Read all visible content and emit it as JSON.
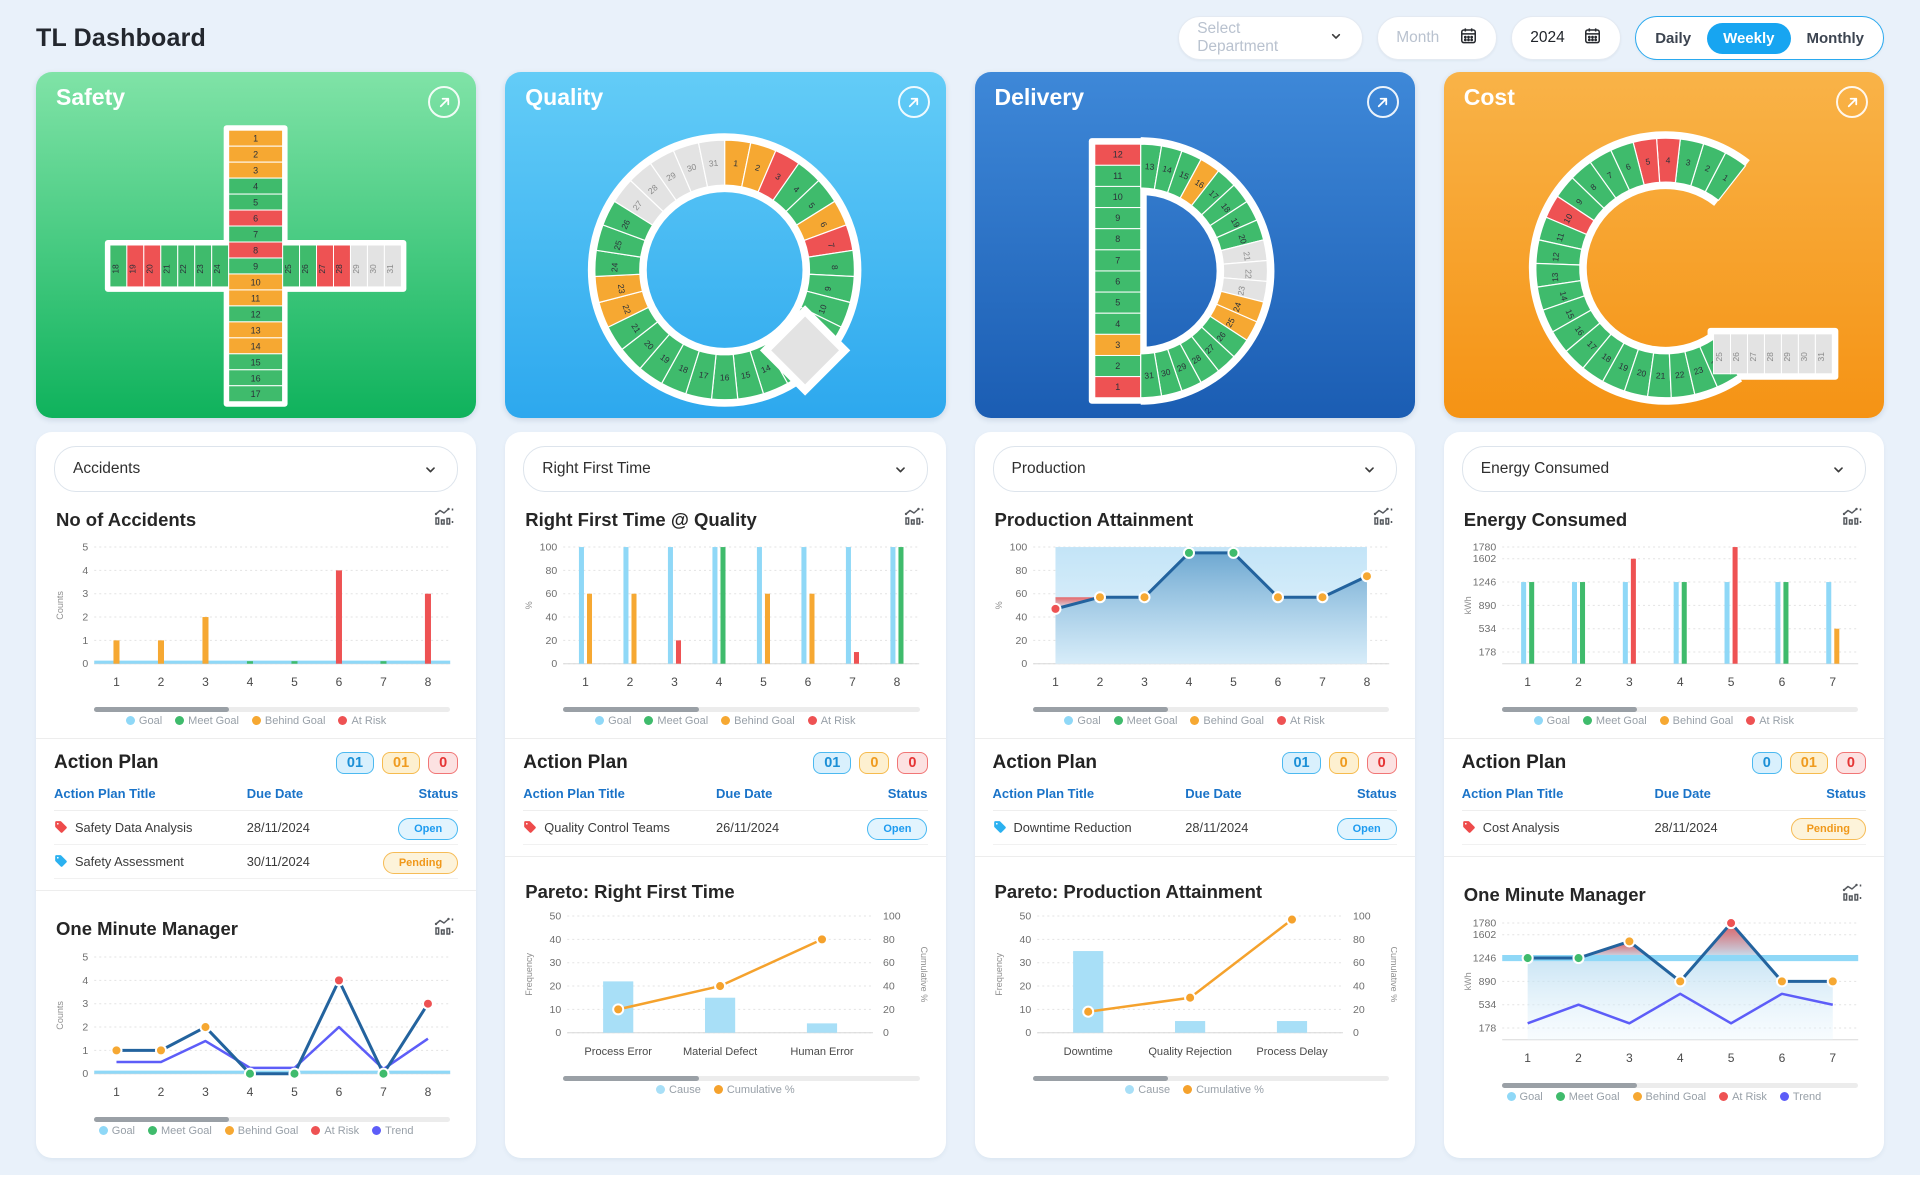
{
  "colors": {
    "goal": "#8fd8f7",
    "meet": "#3fbb6c",
    "behind": "#f6a832",
    "risk": "#ee5253",
    "none": "#e3e3e3",
    "trend": "#5d5df8",
    "line": "#23639e",
    "pareto_bar": "#a8dff7",
    "cumulative": "#f5a22d",
    "accent": "#18a7f1"
  },
  "header": {
    "title": "TL Dashboard",
    "department_placeholder": "Select Department",
    "month_placeholder": "Month",
    "year": "2024",
    "ranges": [
      "Daily",
      "Weekly",
      "Monthly"
    ],
    "active_range": "Weekly"
  },
  "columns": [
    {
      "key": "safety",
      "title": "Safety",
      "letter": "plus",
      "gradient": [
        "#80e3a7",
        "#0fb25c"
      ],
      "days": [
        "behind",
        "behind",
        "behind",
        "meet",
        "meet",
        "risk",
        "meet",
        "risk",
        "meet",
        "behind",
        "behind",
        "meet",
        "behind",
        "behind",
        "meet",
        "meet",
        "meet",
        "meet",
        "risk",
        "risk",
        "meet",
        "meet",
        "meet",
        "meet",
        "meet",
        "meet",
        "risk",
        "risk",
        "none",
        "none",
        "none"
      ],
      "metric": "Accidents",
      "main_chart": {
        "kind": "bars",
        "title": "No of Accidents",
        "ylabel": "Counts",
        "yticks": [
          0,
          1,
          2,
          3,
          4,
          5
        ],
        "x": [
          "1",
          "2",
          "3",
          "4",
          "5",
          "6",
          "7",
          "8"
        ],
        "values": [
          1,
          1,
          2,
          0,
          0,
          4,
          0,
          3
        ],
        "statuses": [
          "behind",
          "behind",
          "behind",
          "meet",
          "meet",
          "risk",
          "meet",
          "risk"
        ],
        "goal": 0,
        "legend": [
          {
            "label": "Goal",
            "key": "goal"
          },
          {
            "label": "Meet Goal",
            "key": "meet"
          },
          {
            "label": "Behind Goal",
            "key": "behind"
          },
          {
            "label": "At Risk",
            "key": "risk"
          }
        ]
      },
      "action_plan": {
        "title": "Action Plan",
        "counts": [
          {
            "value": "01",
            "type": "open"
          },
          {
            "value": "01",
            "type": "pending"
          },
          {
            "value": "0",
            "type": "risk"
          }
        ],
        "columns": [
          "Action Plan Title",
          "Due Date",
          "Status"
        ],
        "rows": [
          {
            "tag": "risk",
            "title": "Safety Data Analysis",
            "due": "28/11/2024",
            "status": "Open",
            "status_type": "open"
          },
          {
            "tag": "open",
            "title": "Safety Assessment",
            "due": "30/11/2024",
            "status": "Pending",
            "status_type": "pending"
          }
        ]
      },
      "bottom_chart": {
        "kind": "omm",
        "title": "One Minute Manager",
        "ylabel": "Counts",
        "yticks": [
          0,
          1,
          2,
          3,
          4,
          5
        ],
        "x": [
          "1",
          "2",
          "3",
          "4",
          "5",
          "6",
          "7",
          "8"
        ],
        "values": [
          1,
          1,
          2,
          0,
          0,
          4,
          0,
          3
        ],
        "statuses": [
          "behind",
          "behind",
          "behind",
          "meet",
          "meet",
          "risk",
          "meet",
          "risk"
        ],
        "trend": [
          0.5,
          0.5,
          1.4,
          0.25,
          0.25,
          2,
          0.2,
          1.5
        ],
        "goal": 0,
        "fill": false,
        "legend": [
          {
            "label": "Goal",
            "key": "goal"
          },
          {
            "label": "Meet Goal",
            "key": "meet"
          },
          {
            "label": "Behind Goal",
            "key": "behind"
          },
          {
            "label": "At Risk",
            "key": "risk"
          },
          {
            "label": "Trend",
            "key": "trend"
          }
        ]
      }
    },
    {
      "key": "quality",
      "title": "Quality",
      "letter": "q",
      "gradient": [
        "#63ccf7",
        "#2da8ee"
      ],
      "days": [
        "behind",
        "behind",
        "risk",
        "meet",
        "meet",
        "behind",
        "risk",
        "meet",
        "meet",
        "meet",
        "meet",
        "meet",
        "meet",
        "meet",
        "meet",
        "meet",
        "meet",
        "meet",
        "meet",
        "meet",
        "meet",
        "behind",
        "behind",
        "meet",
        "meet",
        "meet",
        "none",
        "none",
        "none",
        "none",
        "none"
      ],
      "metric": "Right First Time",
      "main_chart": {
        "kind": "paired",
        "title": "Right First Time @ Quality",
        "ylabel": "%",
        "yticks": [
          0,
          20,
          40,
          60,
          80,
          100
        ],
        "x": [
          "1",
          "2",
          "3",
          "4",
          "5",
          "6",
          "7",
          "8"
        ],
        "goal_value": 100,
        "values": [
          60,
          60,
          20,
          100,
          60,
          60,
          10,
          100
        ],
        "statuses": [
          "behind",
          "behind",
          "risk",
          "meet",
          "behind",
          "behind",
          "risk",
          "meet"
        ],
        "legend": [
          {
            "label": "Goal",
            "key": "goal"
          },
          {
            "label": "Meet Goal",
            "key": "meet"
          },
          {
            "label": "Behind Goal",
            "key": "behind"
          },
          {
            "label": "At Risk",
            "key": "risk"
          }
        ]
      },
      "action_plan": {
        "title": "Action Plan",
        "counts": [
          {
            "value": "01",
            "type": "open"
          },
          {
            "value": "0",
            "type": "pending"
          },
          {
            "value": "0",
            "type": "risk"
          }
        ],
        "columns": [
          "Action Plan Title",
          "Due Date",
          "Status"
        ],
        "rows": [
          {
            "tag": "risk",
            "title": "Quality Control Teams",
            "due": "26/11/2024",
            "status": "Open",
            "status_type": "open"
          }
        ]
      },
      "bottom_chart": {
        "kind": "pareto",
        "title": "Pareto: Right First Time",
        "left_label": "Frequency",
        "right_label": "Cumulative %",
        "left_ticks": [
          0,
          10,
          20,
          30,
          40,
          50
        ],
        "right_ticks": [
          0,
          20,
          40,
          60,
          80,
          100
        ],
        "categories": [
          "Process Error",
          "Material Defect",
          "Human Error"
        ],
        "bars": [
          22,
          15,
          4
        ],
        "cumulative": [
          20,
          40,
          80
        ],
        "legend": [
          {
            "label": "Cause",
            "key": "pareto_bar"
          },
          {
            "label": "Cumulative %",
            "key": "cumulative"
          }
        ]
      }
    },
    {
      "key": "delivery",
      "title": "Delivery",
      "letter": "d",
      "gradient": [
        "#3e88d8",
        "#1b5db3"
      ],
      "days": [
        "risk",
        "meet",
        "behind",
        "meet",
        "meet",
        "meet",
        "meet",
        "meet",
        "meet",
        "meet",
        "meet",
        "risk",
        "meet",
        "meet",
        "meet",
        "behind",
        "meet",
        "meet",
        "meet",
        "meet",
        "none",
        "none",
        "none",
        "behind",
        "behind",
        "meet",
        "meet",
        "meet",
        "meet",
        "meet",
        "meet"
      ],
      "metric": "Production",
      "main_chart": {
        "kind": "area",
        "title": "Production Attainment",
        "ylabel": "%",
        "yticks": [
          0,
          20,
          40,
          60,
          80,
          100
        ],
        "x": [
          "1",
          "2",
          "3",
          "4",
          "5",
          "6",
          "7",
          "8"
        ],
        "values": [
          47,
          57,
          57,
          95,
          95,
          57,
          57,
          75
        ],
        "statuses": [
          "risk",
          "behind",
          "behind",
          "meet",
          "meet",
          "behind",
          "behind",
          "behind"
        ],
        "goal": 57,
        "legend": [
          {
            "label": "Goal",
            "key": "goal"
          },
          {
            "label": "Meet Goal",
            "key": "meet"
          },
          {
            "label": "Behind Goal",
            "key": "behind"
          },
          {
            "label": "At Risk",
            "key": "risk"
          }
        ]
      },
      "action_plan": {
        "title": "Action Plan",
        "counts": [
          {
            "value": "01",
            "type": "open"
          },
          {
            "value": "0",
            "type": "pending"
          },
          {
            "value": "0",
            "type": "risk"
          }
        ],
        "columns": [
          "Action Plan Title",
          "Due Date",
          "Status"
        ],
        "rows": [
          {
            "tag": "open",
            "title": "Downtime Reduction",
            "due": "28/11/2024",
            "status": "Open",
            "status_type": "open"
          }
        ]
      },
      "bottom_chart": {
        "kind": "pareto",
        "title": "Pareto: Production Attainment",
        "left_label": "Frequency",
        "right_label": "Cumulative %",
        "left_ticks": [
          0,
          10,
          20,
          30,
          40,
          50
        ],
        "right_ticks": [
          0,
          20,
          40,
          60,
          80,
          100
        ],
        "categories": [
          "Downtime",
          "Quality Rejection",
          "Process Delay"
        ],
        "bars": [
          35,
          5,
          5
        ],
        "cumulative": [
          18,
          30,
          97
        ],
        "legend": [
          {
            "label": "Cause",
            "key": "pareto_bar"
          },
          {
            "label": "Cumulative %",
            "key": "cumulative"
          }
        ]
      }
    },
    {
      "key": "cost",
      "title": "Cost",
      "letter": "c",
      "gradient": [
        "#f9b348",
        "#f59314"
      ],
      "days": [
        "meet",
        "meet",
        "meet",
        "risk",
        "risk",
        "meet",
        "meet",
        "meet",
        "meet",
        "risk",
        "meet",
        "meet",
        "meet",
        "meet",
        "meet",
        "meet",
        "meet",
        "meet",
        "meet",
        "meet",
        "meet",
        "meet",
        "meet",
        "meet",
        "none",
        "none",
        "none",
        "none",
        "none",
        "none",
        "none"
      ],
      "metric": "Energy Consumed",
      "main_chart": {
        "kind": "paired",
        "title": "Energy Consumed",
        "ylabel": "kWh",
        "ymin": 0,
        "yticks": [
          178,
          534,
          890,
          1246,
          1602,
          1780
        ],
        "x": [
          "1",
          "2",
          "3",
          "4",
          "5",
          "6",
          "7"
        ],
        "goal_value": 1246,
        "values": [
          1246,
          1246,
          1602,
          1246,
          1780,
          1246,
          534
        ],
        "statuses": [
          "meet",
          "meet",
          "risk",
          "meet",
          "risk",
          "meet",
          "behind"
        ],
        "legend": [
          {
            "label": "Goal",
            "key": "goal"
          },
          {
            "label": "Meet Goal",
            "key": "meet"
          },
          {
            "label": "Behind Goal",
            "key": "behind"
          },
          {
            "label": "At Risk",
            "key": "risk"
          }
        ]
      },
      "action_plan": {
        "title": "Action Plan",
        "counts": [
          {
            "value": "0",
            "type": "open"
          },
          {
            "value": "01",
            "type": "pending"
          },
          {
            "value": "0",
            "type": "risk"
          }
        ],
        "columns": [
          "Action Plan Title",
          "Due Date",
          "Status"
        ],
        "rows": [
          {
            "tag": "risk",
            "title": "Cost Analysis",
            "due": "28/11/2024",
            "status": "Pending",
            "status_type": "pending"
          }
        ]
      },
      "bottom_chart": {
        "kind": "omm",
        "title": "One Minute Manager",
        "ylabel": "kWh",
        "ymin": 0,
        "yticks": [
          178,
          534,
          890,
          1246,
          1602,
          1780
        ],
        "x": [
          "1",
          "2",
          "3",
          "4",
          "5",
          "6",
          "7"
        ],
        "values": [
          1246,
          1246,
          1500,
          890,
          1780,
          890,
          890
        ],
        "statuses": [
          "meet",
          "meet",
          "behind",
          "behind",
          "risk",
          "behind",
          "behind"
        ],
        "trend": [
          250,
          534,
          250,
          700,
          250,
          700,
          534
        ],
        "goal": 1246,
        "fill": true,
        "legend": [
          {
            "label": "Goal",
            "key": "goal"
          },
          {
            "label": "Meet Goal",
            "key": "meet"
          },
          {
            "label": "Behind Goal",
            "key": "behind"
          },
          {
            "label": "At Risk",
            "key": "risk"
          },
          {
            "label": "Trend",
            "key": "trend"
          }
        ]
      }
    }
  ]
}
